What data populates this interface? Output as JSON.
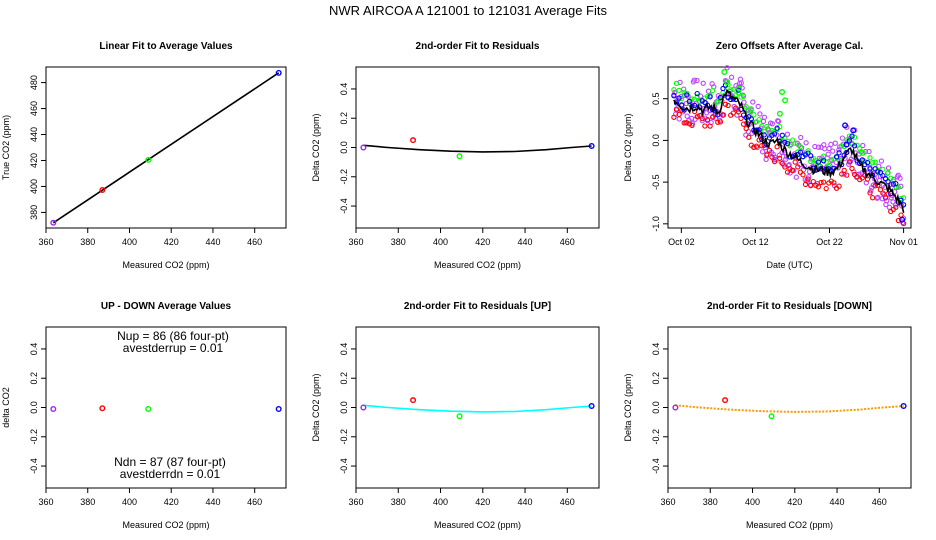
{
  "figure": {
    "title": "NWR   AIRCOA A   121001 to 121031   Average Fits"
  },
  "colors": {
    "purple": "#a020f0",
    "red": "#ff0000",
    "green": "#00ff00",
    "blue": "#0000ff",
    "black": "#000000",
    "cyan": "#00ffff",
    "orange": "#ff9900",
    "magenta": "#bb44ff"
  },
  "chart_data": [
    {
      "id": "linear",
      "type": "scatter",
      "title": "Linear Fit to Average Values",
      "xlabel": "Measured CO2 (ppm)",
      "ylabel": "True CO2 (ppm)",
      "xlim": [
        360,
        475
      ],
      "ylim": [
        368,
        492
      ],
      "xticks": [
        360,
        380,
        400,
        420,
        440,
        460
      ],
      "yticks": [
        380,
        400,
        420,
        440,
        460,
        480
      ],
      "points": [
        {
          "x": 363.5,
          "y": 372,
          "color": "purple"
        },
        {
          "x": 387.0,
          "y": 397.3,
          "color": "red"
        },
        {
          "x": 409.0,
          "y": 420.5,
          "color": "green"
        },
        {
          "x": 471.5,
          "y": 487.5,
          "color": "blue"
        }
      ],
      "fit_line": {
        "x": [
          363.5,
          471.5
        ],
        "y": [
          372,
          487.5
        ],
        "color": "black"
      }
    },
    {
      "id": "resid",
      "type": "scatter",
      "title": "2nd-order Fit to Residuals",
      "xlabel": "Measured CO2 (ppm)",
      "ylabel": "Delta CO2 (ppm)",
      "xlim": [
        360,
        475
      ],
      "ylim": [
        -0.55,
        0.55
      ],
      "xticks": [
        360,
        380,
        400,
        420,
        440,
        460
      ],
      "yticks": [
        -0.4,
        -0.2,
        0.0,
        0.2,
        0.4
      ],
      "ytick_labels": [
        "-0.4",
        "-0.2",
        "0.0",
        "0.2",
        "0.4"
      ],
      "points": [
        {
          "x": 363.5,
          "y": 0.0,
          "color": "purple"
        },
        {
          "x": 387.0,
          "y": 0.05,
          "color": "red"
        },
        {
          "x": 409.0,
          "y": -0.06,
          "color": "green"
        },
        {
          "x": 471.5,
          "y": 0.01,
          "color": "blue"
        }
      ],
      "fit_curve": {
        "x": [
          363.5,
          375,
          390,
          405,
          420,
          435,
          450,
          462,
          471.5
        ],
        "y": [
          0.015,
          0.0,
          -0.015,
          -0.025,
          -0.03,
          -0.027,
          -0.015,
          0.0,
          0.01
        ],
        "color": "black",
        "style": "solid"
      }
    },
    {
      "id": "zero",
      "type": "scatter",
      "title": "Zero Offsets After Average Cal.",
      "xlabel": "Date (UTC)",
      "ylabel": "Delta CO2 (ppm)",
      "xlim": [
        -0.8,
        32.0
      ],
      "ylim": [
        -1.05,
        0.88
      ],
      "xticks": [
        1,
        11,
        21,
        31
      ],
      "xtick_labels": [
        "Oct 02",
        "Oct 12",
        "Oct 22",
        "Nov 01"
      ],
      "yticks": [
        -1.0,
        -0.5,
        0.0,
        0.5
      ],
      "ytick_labels": [
        "-1.0",
        "-0.5",
        "0.0",
        "0.5"
      ],
      "trend": {
        "x": [
          0,
          1,
          2,
          3,
          4,
          5,
          6,
          7,
          8,
          9,
          10,
          11,
          12,
          13,
          14,
          15,
          16,
          17,
          18,
          19,
          20,
          21,
          22,
          23,
          24,
          25,
          26,
          27,
          28,
          29,
          30,
          31
        ],
        "y": [
          0.5,
          0.42,
          0.38,
          0.42,
          0.36,
          0.4,
          0.34,
          0.58,
          0.5,
          0.42,
          0.22,
          0.12,
          0.02,
          -0.05,
          0.0,
          -0.12,
          -0.18,
          -0.25,
          -0.3,
          -0.35,
          -0.36,
          -0.38,
          -0.34,
          -0.2,
          -0.1,
          -0.3,
          -0.38,
          -0.45,
          -0.52,
          -0.58,
          -0.68,
          -0.82
        ]
      },
      "spikes": [
        {
          "x": 6.8,
          "y": 0.82,
          "color": "green"
        },
        {
          "x": 7.2,
          "y": 0.7,
          "color": "green"
        },
        {
          "x": 8.8,
          "y": 0.62,
          "color": "green"
        },
        {
          "x": 11.2,
          "y": 0.12,
          "color": "blue"
        },
        {
          "x": 14.3,
          "y": 0.32,
          "color": "green"
        },
        {
          "x": 14.6,
          "y": 0.58,
          "color": "green"
        },
        {
          "x": 15.0,
          "y": 0.48,
          "color": "green"
        },
        {
          "x": 23.1,
          "y": 0.18,
          "color": "blue"
        },
        {
          "x": 23.3,
          "y": -0.05,
          "color": "blue"
        },
        {
          "x": 24.2,
          "y": 0.12,
          "color": "blue"
        },
        {
          "x": 25.5,
          "y": -0.15,
          "color": "green"
        },
        {
          "x": 30.8,
          "y": -0.95,
          "color": "blue"
        }
      ],
      "series": [
        {
          "name": "purple",
          "offset": 0.05,
          "spread": 0.28,
          "color": "magenta"
        },
        {
          "name": "red",
          "offset": -0.15,
          "spread": 0.1,
          "color": "red"
        },
        {
          "name": "green",
          "offset": 0.14,
          "spread": 0.08,
          "color": "green"
        },
        {
          "name": "blue",
          "offset": 0.06,
          "spread": 0.1,
          "color": "blue"
        }
      ]
    },
    {
      "id": "updown",
      "type": "scatter",
      "title": "UP - DOWN Average Values",
      "xlabel": "Measured CO2 (ppm)",
      "ylabel": "delta CO2",
      "xlim": [
        360,
        475
      ],
      "ylim": [
        -0.55,
        0.55
      ],
      "xticks": [
        360,
        380,
        400,
        420,
        440,
        460
      ],
      "yticks": [
        -0.4,
        -0.2,
        0.0,
        0.2,
        0.4
      ],
      "ytick_labels": [
        "-0.4",
        "-0.2",
        "0.0",
        "0.2",
        "0.4"
      ],
      "points": [
        {
          "x": 363.5,
          "y": -0.01,
          "color": "purple"
        },
        {
          "x": 387.0,
          "y": -0.005,
          "color": "red"
        },
        {
          "x": 409.0,
          "y": -0.01,
          "color": "green"
        },
        {
          "x": 471.5,
          "y": -0.01,
          "color": "blue"
        }
      ],
      "annotations_top": [
        "Nup = 86 (86 four-pt)",
        "avestderrup =  0.01"
      ],
      "annotations_bottom": [
        "Ndn = 87 (87 four-pt)",
        "avestderrdn =  0.01"
      ]
    },
    {
      "id": "resid_up",
      "type": "scatter",
      "title": "2nd-order Fit to Residuals [UP]",
      "xlabel": "Measured CO2 (ppm)",
      "ylabel": "Delta CO2 (ppm)",
      "xlim": [
        360,
        475
      ],
      "ylim": [
        -0.55,
        0.55
      ],
      "xticks": [
        360,
        380,
        400,
        420,
        440,
        460
      ],
      "yticks": [
        -0.4,
        -0.2,
        0.0,
        0.2,
        0.4
      ],
      "ytick_labels": [
        "-0.4",
        "-0.2",
        "0.0",
        "0.2",
        "0.4"
      ],
      "points": [
        {
          "x": 363.5,
          "y": 0.0,
          "color": "purple"
        },
        {
          "x": 387.0,
          "y": 0.05,
          "color": "red"
        },
        {
          "x": 409.0,
          "y": -0.06,
          "color": "green"
        },
        {
          "x": 471.5,
          "y": 0.01,
          "color": "blue"
        }
      ],
      "fit_curve": {
        "x": [
          363.5,
          375,
          390,
          405,
          420,
          435,
          450,
          462,
          471.5
        ],
        "y": [
          0.015,
          0.0,
          -0.015,
          -0.025,
          -0.03,
          -0.027,
          -0.015,
          0.0,
          0.01
        ],
        "color": "cyan",
        "style": "solid"
      }
    },
    {
      "id": "resid_down",
      "type": "scatter",
      "title": "2nd-order Fit to Residuals [DOWN]",
      "xlabel": "Measured CO2 (ppm)",
      "ylabel": "Delta CO2 (ppm)",
      "xlim": [
        360,
        475
      ],
      "ylim": [
        -0.55,
        0.55
      ],
      "xticks": [
        360,
        380,
        400,
        420,
        440,
        460
      ],
      "yticks": [
        -0.4,
        -0.2,
        0.0,
        0.2,
        0.4
      ],
      "ytick_labels": [
        "-0.4",
        "-0.2",
        "0.0",
        "0.2",
        "0.4"
      ],
      "points": [
        {
          "x": 363.5,
          "y": 0.0,
          "color": "purple"
        },
        {
          "x": 387.0,
          "y": 0.05,
          "color": "red"
        },
        {
          "x": 409.0,
          "y": -0.06,
          "color": "green"
        },
        {
          "x": 471.5,
          "y": 0.01,
          "color": "blue"
        }
      ],
      "fit_curve": {
        "x": [
          363.5,
          375,
          390,
          405,
          420,
          435,
          450,
          462,
          471.5
        ],
        "y": [
          0.015,
          0.0,
          -0.015,
          -0.025,
          -0.03,
          -0.027,
          -0.015,
          0.0,
          0.01
        ],
        "color": "orange",
        "style": "dotted"
      }
    }
  ]
}
